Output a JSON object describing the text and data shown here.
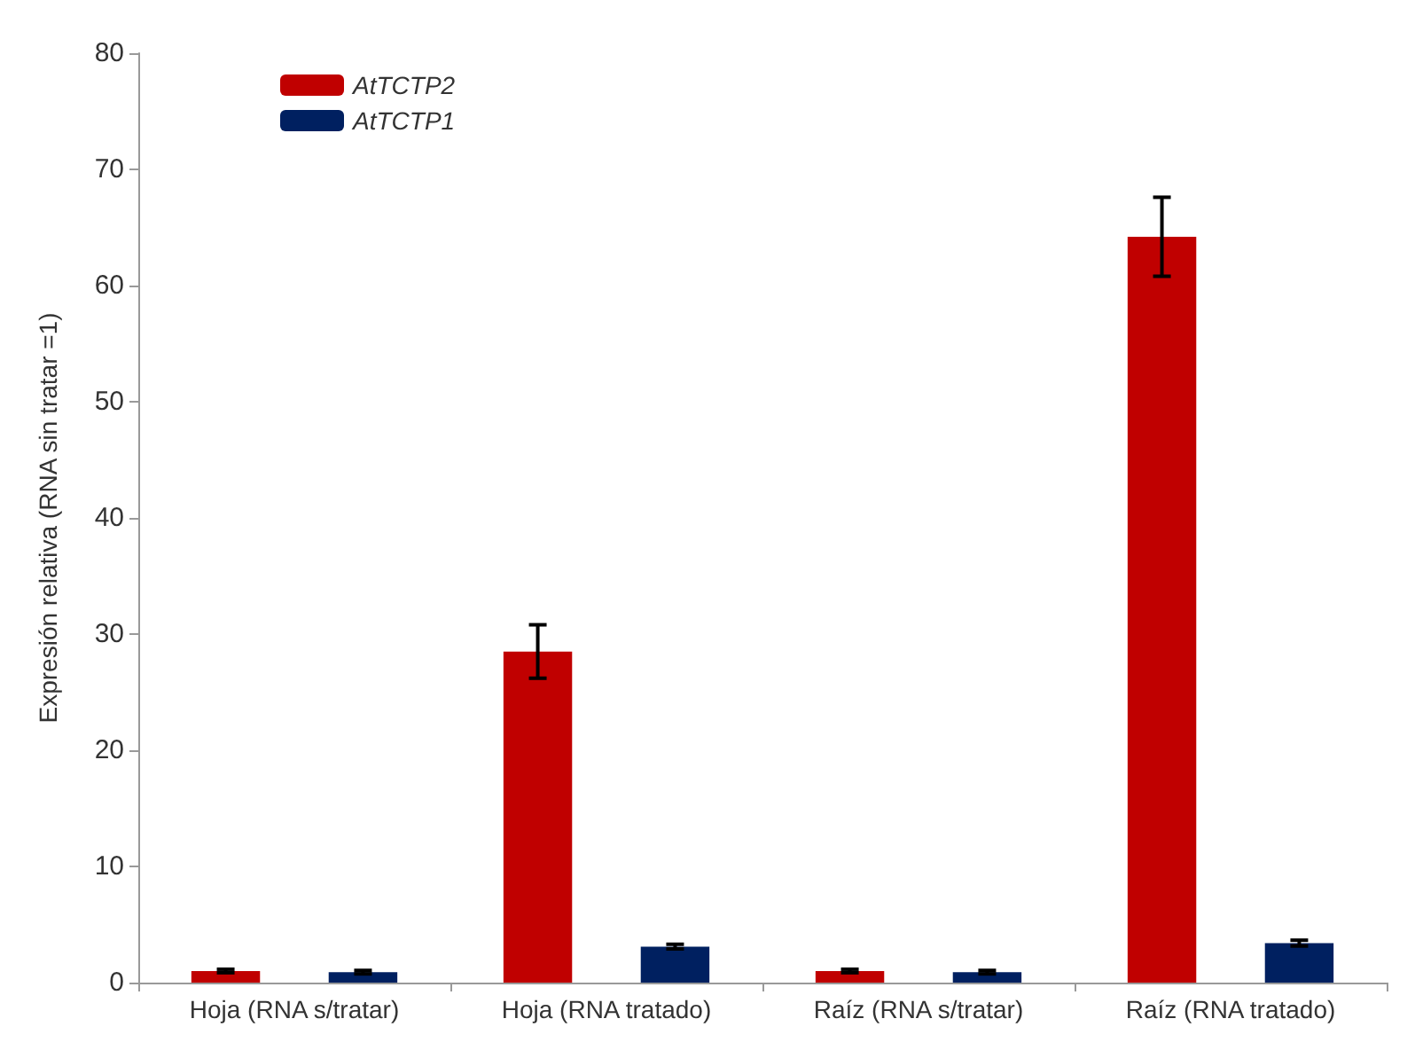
{
  "chart_data": {
    "type": "bar",
    "ylabel": "Expresión relativa (RNA sin tratar =1)",
    "categories": [
      "Hoja (RNA s/tratar)",
      "Hoja (RNA tratado)",
      "Raíz (RNA s/tratar)",
      "Raíz (RNA tratado)"
    ],
    "series": [
      {
        "name": "AtTCTP2",
        "color": "#c00000",
        "values": [
          1,
          28.5,
          1,
          64.2
        ],
        "errors": [
          0.15,
          2.3,
          0.15,
          3.4
        ]
      },
      {
        "name": "AtTCTP1",
        "color": "#002060",
        "values": [
          0.9,
          3.1,
          0.9,
          3.4
        ],
        "errors": [
          0.15,
          0.2,
          0.15,
          0.25
        ]
      }
    ],
    "ylim": [
      0,
      80
    ],
    "yticks": [
      0,
      10,
      20,
      30,
      40,
      50,
      60,
      70,
      80
    ],
    "legend": "top left"
  }
}
